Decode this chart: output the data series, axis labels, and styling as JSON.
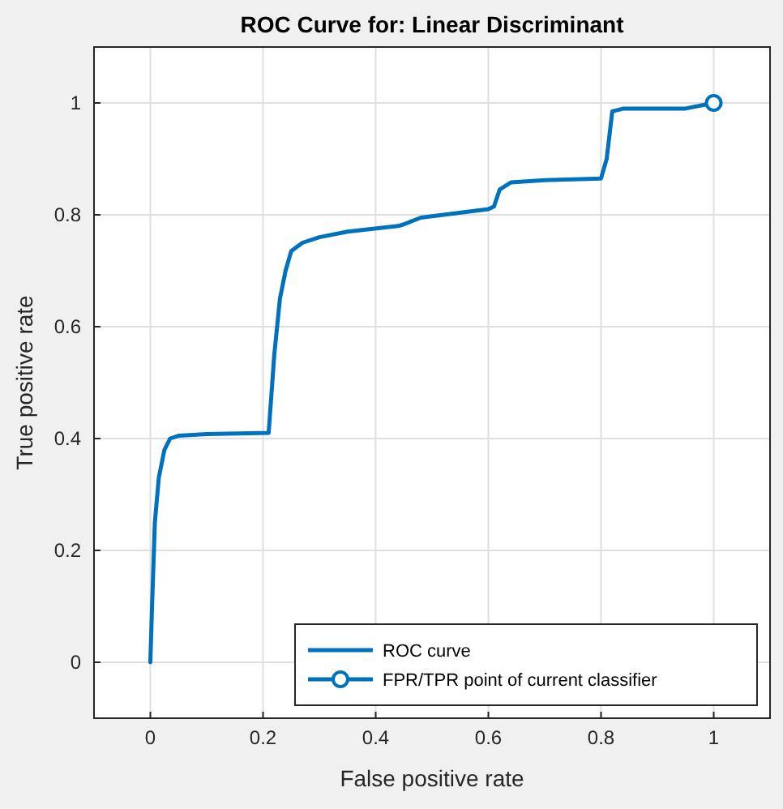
{
  "chart_data": {
    "type": "line",
    "title": "ROC Curve for: Linear Discriminant",
    "xlabel": "False positive rate",
    "ylabel": "True positive rate",
    "xlim": [
      -0.1,
      1.1
    ],
    "ylim": [
      -0.1,
      1.1
    ],
    "xticks": [
      0,
      0.2,
      0.4,
      0.6,
      0.8,
      1
    ],
    "yticks": [
      0,
      0.2,
      0.4,
      0.6,
      0.8,
      1
    ],
    "grid": true,
    "legend": "bottom right",
    "series": [
      {
        "name": "ROC curve",
        "color": "#0072bd",
        "marker": "none",
        "x": [
          0,
          0.003,
          0.008,
          0.015,
          0.025,
          0.035,
          0.05,
          0.1,
          0.21,
          0.22,
          0.23,
          0.24,
          0.25,
          0.27,
          0.3,
          0.35,
          0.44,
          0.45,
          0.48,
          0.6,
          0.61,
          0.62,
          0.64,
          0.7,
          0.8,
          0.81,
          0.82,
          0.84,
          0.95,
          1
        ],
        "values": [
          0,
          0.1,
          0.25,
          0.33,
          0.38,
          0.4,
          0.405,
          0.408,
          0.41,
          0.55,
          0.65,
          0.7,
          0.735,
          0.75,
          0.76,
          0.77,
          0.78,
          0.783,
          0.795,
          0.81,
          0.815,
          0.845,
          0.858,
          0.862,
          0.865,
          0.9,
          0.985,
          0.99,
          0.99,
          1
        ]
      },
      {
        "name": "FPR/TPR point of current classifier",
        "color": "#0072bd",
        "type": "scatter",
        "marker": "circle",
        "x": [
          1
        ],
        "values": [
          1
        ]
      }
    ]
  }
}
